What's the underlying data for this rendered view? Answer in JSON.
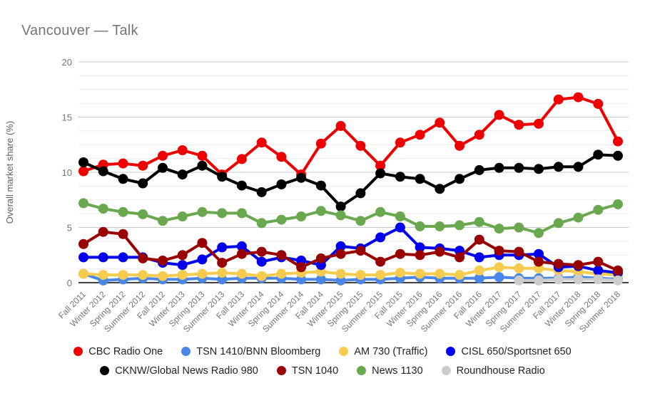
{
  "title": "Vancouver — Talk",
  "axes": {
    "y_title": "Overall market share (%)",
    "y_tick_labels": [
      "0",
      "5",
      "10",
      "15",
      "20"
    ]
  },
  "colors": {
    "background": "#ffffff",
    "title_text": "#757575",
    "axis_text": "#757575",
    "y_axis_title_text": "#616161",
    "legend_text": "#222222",
    "major_gridline": "#c8c8c8",
    "minor_gridline": "#ececec",
    "baseline": "#424242"
  },
  "chart_data": {
    "type": "line",
    "title": "Vancouver — Talk",
    "xlabel": "",
    "ylabel": "Overall market share (%)",
    "ylim": [
      0,
      20
    ],
    "y_major_ticks": [
      0,
      5,
      10,
      15,
      20
    ],
    "minor_gridline_step": 1.25,
    "grid": true,
    "legend_position": "bottom",
    "marker": "circle",
    "categories": [
      "Fall 2011",
      "Winter 2012",
      "Spring 2012",
      "Summer 2012",
      "Fall 2012",
      "Winter 2013",
      "Spring 2013",
      "Summer 2013",
      "Fall 2013",
      "Winter 2014",
      "Spring 2014",
      "Summer 2014",
      "Fall 2014",
      "Winter 2015",
      "Spring 2015",
      "Summer 2015",
      "Fall 2015",
      "Winter 2016",
      "Spring 2016",
      "Summer 2016",
      "Fall 2016",
      "Winter 2017",
      "Spring 2017",
      "Summer 2017",
      "Fall 2017",
      "Winter 2018",
      "Spring 2018",
      "Summer 2018"
    ],
    "series": [
      {
        "name": "CBC Radio One",
        "color": "#ee0000",
        "legend_row": 0,
        "values": [
          10.1,
          10.7,
          10.8,
          10.6,
          11.5,
          12.0,
          11.5,
          9.8,
          11.2,
          12.7,
          11.4,
          9.8,
          12.6,
          14.2,
          12.4,
          10.6,
          12.7,
          13.4,
          14.5,
          12.4,
          13.4,
          15.2,
          14.3,
          14.4,
          16.6,
          16.8,
          16.2,
          12.8
        ]
      },
      {
        "name": "TSN 1410/BNN Bloomberg",
        "color": "#4a86e8",
        "legend_row": 0,
        "values": [
          0.8,
          0.2,
          0.3,
          0.4,
          0.3,
          0.3,
          0.4,
          0.3,
          0.4,
          0.4,
          0.4,
          0.3,
          0.3,
          0.2,
          0.3,
          0.3,
          0.4,
          0.5,
          0.4,
          0.4,
          0.4,
          0.5,
          0.4,
          0.4,
          0.4,
          0.5,
          0.4,
          0.3
        ]
      },
      {
        "name": "AM 730 (Traffic)",
        "color": "#f7cb4d",
        "legend_row": 0,
        "values": [
          0.8,
          0.7,
          0.7,
          0.7,
          0.6,
          0.7,
          0.8,
          0.9,
          0.8,
          0.6,
          0.8,
          0.9,
          1.0,
          0.8,
          0.7,
          0.7,
          0.9,
          0.8,
          0.8,
          0.7,
          1.1,
          1.4,
          1.3,
          1.3,
          1.1,
          1.0,
          0.8,
          0.7
        ]
      },
      {
        "name": "CISL 650/Sportsnet 650",
        "color": "#0000ee",
        "legend_row": 0,
        "values": [
          2.3,
          2.3,
          2.3,
          2.3,
          1.8,
          1.6,
          2.1,
          3.2,
          3.3,
          1.9,
          2.3,
          2.0,
          1.6,
          3.3,
          3.1,
          4.1,
          5.0,
          3.2,
          3.1,
          2.9,
          2.3,
          2.5,
          2.5,
          2.6,
          1.4,
          1.5,
          1.1,
          0.9
        ]
      },
      {
        "name": "CKNW/Global News Radio 980",
        "color": "#000000",
        "legend_row": 1,
        "values": [
          10.9,
          10.1,
          9.4,
          9.0,
          10.4,
          9.8,
          10.6,
          9.6,
          8.8,
          8.2,
          8.9,
          9.5,
          8.8,
          6.9,
          8.1,
          9.9,
          9.6,
          9.4,
          8.5,
          9.4,
          10.2,
          10.4,
          10.4,
          10.3,
          10.5,
          10.5,
          11.6,
          11.5
        ]
      },
      {
        "name": "TSN 1040",
        "color": "#990000",
        "legend_row": 1,
        "values": [
          3.5,
          4.6,
          4.4,
          2.2,
          2.0,
          2.5,
          3.6,
          1.8,
          2.6,
          2.8,
          2.5,
          1.4,
          2.2,
          2.6,
          2.9,
          1.9,
          2.6,
          2.5,
          2.8,
          2.3,
          3.9,
          2.9,
          2.8,
          1.9,
          1.7,
          1.6,
          1.9,
          1.1
        ]
      },
      {
        "name": "News 1130",
        "color": "#6aa84f",
        "legend_row": 1,
        "values": [
          7.2,
          6.7,
          6.4,
          6.2,
          5.6,
          6.0,
          6.4,
          6.3,
          6.3,
          5.4,
          5.7,
          6.0,
          6.5,
          6.1,
          5.6,
          6.4,
          6.0,
          5.1,
          5.1,
          5.2,
          5.5,
          4.9,
          5.0,
          4.5,
          5.4,
          5.9,
          6.6,
          7.1
        ]
      },
      {
        "name": "Roundhouse Radio",
        "color": "#cccccc",
        "legend_row": 1,
        "values": [
          null,
          null,
          null,
          null,
          null,
          null,
          null,
          null,
          null,
          null,
          null,
          null,
          null,
          null,
          null,
          null,
          null,
          null,
          null,
          null,
          null,
          null,
          0.2,
          0.2,
          0.3,
          0.3,
          0.3,
          0.2
        ]
      }
    ]
  }
}
